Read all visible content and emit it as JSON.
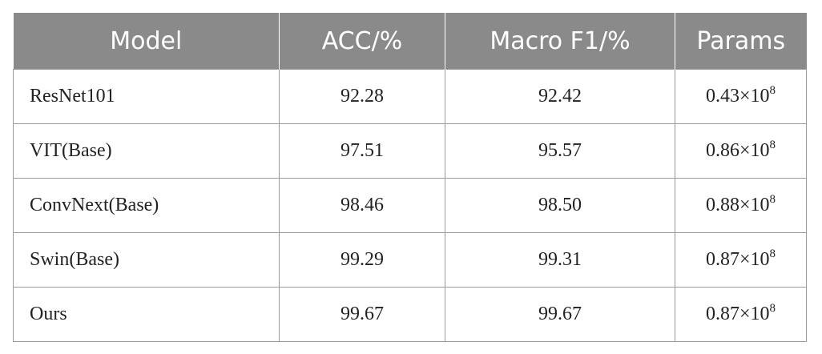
{
  "table": {
    "headers": [
      "Model",
      "ACC/%",
      "Macro F1/%",
      "Params"
    ],
    "rows": [
      {
        "model": "ResNet101",
        "acc": "92.28",
        "f1": "92.42",
        "params_base": "0.43×10",
        "params_exp": "8"
      },
      {
        "model": "VIT(Base)",
        "acc": "97.51",
        "f1": "95.57",
        "params_base": "0.86×10",
        "params_exp": "8"
      },
      {
        "model": "ConvNext(Base)",
        "acc": "98.46",
        "f1": "98.50",
        "params_base": "0.88×10",
        "params_exp": "8"
      },
      {
        "model": "Swin(Base)",
        "acc": "99.29",
        "f1": "99.31",
        "params_base": "0.87×10",
        "params_exp": "8"
      },
      {
        "model": "Ours",
        "acc": "99.67",
        "f1": "99.67",
        "params_base": "0.87×10",
        "params_exp": "8"
      }
    ]
  }
}
